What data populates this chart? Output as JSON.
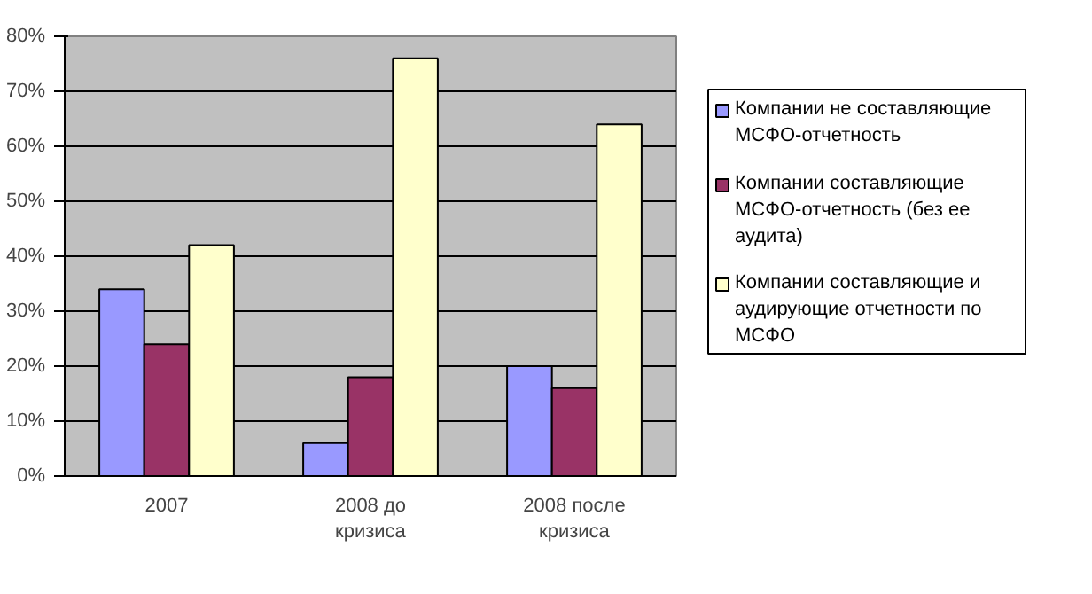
{
  "chart_data": {
    "type": "bar",
    "categories": [
      "2007",
      "2008 до кризиса",
      "2008 после кризиса"
    ],
    "series": [
      {
        "name": "Компании не составляющие МСФО-отчетность",
        "color": "#9999ff",
        "values": [
          34,
          6,
          20
        ]
      },
      {
        "name": "Компании составляющие МСФО-отчетность (без ее аудита)",
        "color": "#993366",
        "values": [
          24,
          18,
          16
        ]
      },
      {
        "name": "Компании составляющие и аудирующие отчетности по МСФО",
        "color": "#ffffcc",
        "values": [
          42,
          76,
          64
        ]
      }
    ],
    "ylim": [
      0,
      80
    ],
    "yticks": [
      {
        "value": 0,
        "label": "0%"
      },
      {
        "value": 10,
        "label": "10%"
      },
      {
        "value": 20,
        "label": "20%"
      },
      {
        "value": 30,
        "label": "30%"
      },
      {
        "value": 40,
        "label": "40%"
      },
      {
        "value": 50,
        "label": "50%"
      },
      {
        "value": 60,
        "label": "60%"
      },
      {
        "value": 70,
        "label": "70%"
      },
      {
        "value": 80,
        "label": "80%"
      }
    ],
    "grid": "y",
    "legend": "right"
  }
}
